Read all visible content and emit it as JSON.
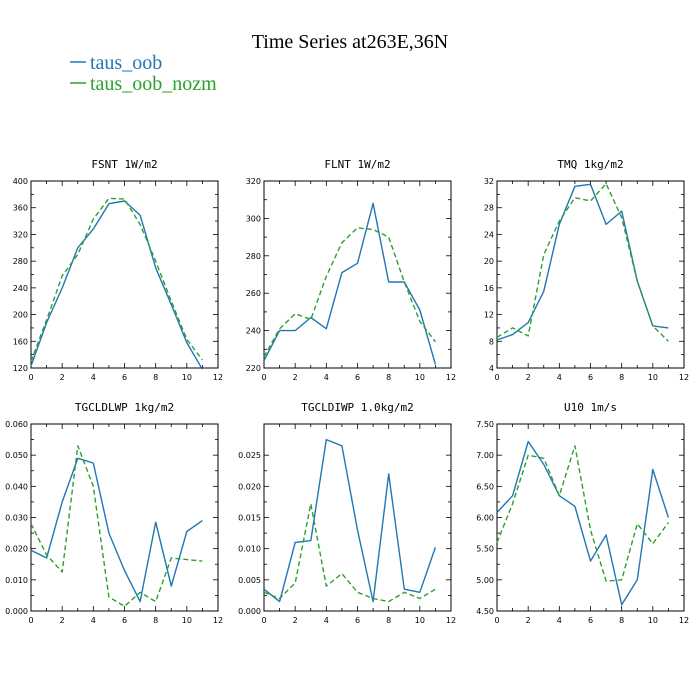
{
  "figure": {
    "title": "Time Series at263E,36N"
  },
  "legend": [
    {
      "name": "taus_oob",
      "color": "#1f77b4"
    },
    {
      "name": "taus_oob_nozm",
      "color": "#2ca02c"
    }
  ],
  "chart_data": [
    {
      "type": "line",
      "title": "FSNT   1W/m2",
      "xlim": [
        0,
        12
      ],
      "ylim": [
        120,
        400
      ],
      "xticks": [
        0,
        2,
        4,
        6,
        8,
        10,
        12
      ],
      "yticks": [
        120,
        160,
        200,
        240,
        280,
        320,
        360,
        400
      ],
      "ytick_labels": [
        "120",
        "160",
        "200",
        "240",
        "280",
        "320",
        "360",
        "400"
      ],
      "x": [
        0,
        1,
        2,
        3,
        4,
        5,
        6,
        7,
        8,
        9,
        10,
        11
      ],
      "series": [
        {
          "name": "taus_oob",
          "color": "#1f77b4",
          "dash": "",
          "values": [
            123,
            188,
            240,
            300,
            328,
            366,
            370,
            349,
            270,
            215,
            158,
            118
          ]
        },
        {
          "name": "taus_oob_nozm",
          "color": "#2ca02c",
          "dash": "5,3",
          "values": [
            130,
            192,
            258,
            290,
            343,
            374,
            373,
            335,
            280,
            220,
            163,
            132
          ]
        }
      ]
    },
    {
      "type": "line",
      "title": "FLNT   1W/m2",
      "xlim": [
        0,
        12
      ],
      "ylim": [
        220,
        320
      ],
      "xticks": [
        0,
        2,
        4,
        6,
        8,
        10,
        12
      ],
      "yticks": [
        220,
        240,
        260,
        280,
        300,
        320
      ],
      "ytick_labels": [
        "220",
        "240",
        "260",
        "280",
        "300",
        "320"
      ],
      "x": [
        0,
        1,
        2,
        3,
        4,
        5,
        6,
        7,
        8,
        9,
        10,
        11
      ],
      "series": [
        {
          "name": "taus_oob",
          "color": "#1f77b4",
          "dash": "",
          "values": [
            224,
            240,
            240,
            247,
            241,
            271,
            276,
            308,
            266,
            266,
            251,
            222
          ]
        },
        {
          "name": "taus_oob_nozm",
          "color": "#2ca02c",
          "dash": "5,3",
          "values": [
            226,
            241,
            249,
            246,
            269,
            287,
            295,
            294,
            290,
            266,
            245,
            234
          ]
        }
      ]
    },
    {
      "type": "line",
      "title": "TMQ   1kg/m2",
      "xlim": [
        0,
        12
      ],
      "ylim": [
        4,
        32
      ],
      "xticks": [
        0,
        2,
        4,
        6,
        8,
        10,
        12
      ],
      "yticks": [
        4,
        8,
        12,
        16,
        20,
        24,
        28,
        32
      ],
      "ytick_labels": [
        "4",
        "8",
        "12",
        "16",
        "20",
        "24",
        "28",
        "32"
      ],
      "x": [
        0,
        1,
        2,
        3,
        4,
        5,
        6,
        7,
        8,
        9,
        10,
        11
      ],
      "series": [
        {
          "name": "taus_oob",
          "color": "#1f77b4",
          "dash": "",
          "values": [
            8.2,
            9.0,
            10.8,
            15.5,
            25.5,
            31.2,
            31.5,
            25.5,
            27.5,
            17.0,
            10.3,
            10.0
          ]
        },
        {
          "name": "taus_oob_nozm",
          "color": "#2ca02c",
          "dash": "5,3",
          "values": [
            8.6,
            10.0,
            8.8,
            21.0,
            26.0,
            29.5,
            29.0,
            31.6,
            26.5,
            17.0,
            10.3,
            8.0
          ]
        }
      ]
    },
    {
      "type": "line",
      "title": "TGCLDLWP   1kg/m2",
      "xlim": [
        0,
        12
      ],
      "ylim": [
        0,
        0.06
      ],
      "xticks": [
        0,
        2,
        4,
        6,
        8,
        10,
        12
      ],
      "yticks": [
        0,
        0.01,
        0.02,
        0.03,
        0.04,
        0.05,
        0.06
      ],
      "ytick_labels": [
        "0.000",
        "0.010",
        "0.020",
        "0.030",
        "0.040",
        "0.050",
        "0.060"
      ],
      "x": [
        0,
        1,
        2,
        3,
        4,
        5,
        6,
        7,
        8,
        9,
        10,
        11
      ],
      "series": [
        {
          "name": "taus_oob",
          "color": "#1f77b4",
          "dash": "",
          "values": [
            0.0195,
            0.017,
            0.035,
            0.049,
            0.0475,
            0.025,
            0.013,
            0.003,
            0.0285,
            0.008,
            0.0255,
            0.029
          ]
        },
        {
          "name": "taus_oob_nozm",
          "color": "#2ca02c",
          "dash": "5,3",
          "values": [
            0.028,
            0.018,
            0.0125,
            0.053,
            0.04,
            0.0045,
            0.0015,
            0.006,
            0.003,
            0.017,
            0.0165,
            0.016
          ]
        }
      ]
    },
    {
      "type": "line",
      "title": "TGCLDIWP   1.0kg/m2",
      "xlim": [
        0,
        12
      ],
      "ylim": [
        0,
        0.03
      ],
      "xticks": [
        0,
        2,
        4,
        6,
        8,
        10,
        12
      ],
      "yticks": [
        0,
        0.005,
        0.01,
        0.015,
        0.02,
        0.025
      ],
      "ytick_labels": [
        "0.000",
        "0.005",
        "0.010",
        "0.015",
        "0.020",
        "0.025"
      ],
      "x": [
        0,
        1,
        2,
        3,
        4,
        5,
        6,
        7,
        8,
        9,
        10,
        11
      ],
      "series": [
        {
          "name": "taus_oob",
          "color": "#1f77b4",
          "dash": "",
          "values": [
            0.0035,
            0.0015,
            0.011,
            0.0113,
            0.0275,
            0.0265,
            0.013,
            0.0015,
            0.022,
            0.0035,
            0.003,
            0.0102
          ]
        },
        {
          "name": "taus_oob_nozm",
          "color": "#2ca02c",
          "dash": "5,3",
          "values": [
            0.003,
            0.002,
            0.0045,
            0.0172,
            0.004,
            0.006,
            0.003,
            0.002,
            0.0015,
            0.003,
            0.002,
            0.0035
          ]
        }
      ]
    },
    {
      "type": "line",
      "title": "U10   1m/s",
      "xlim": [
        0,
        12
      ],
      "ylim": [
        4.5,
        7.5
      ],
      "xticks": [
        0,
        2,
        4,
        6,
        8,
        10,
        12
      ],
      "yticks": [
        4.5,
        5.0,
        5.5,
        6.0,
        6.5,
        7.0,
        7.5
      ],
      "ytick_labels": [
        "4.50",
        "5.00",
        "5.50",
        "6.00",
        "6.50",
        "7.00",
        "7.50"
      ],
      "x": [
        0,
        1,
        2,
        3,
        4,
        5,
        6,
        7,
        8,
        9,
        10,
        11
      ],
      "series": [
        {
          "name": "taus_oob",
          "color": "#1f77b4",
          "dash": "",
          "values": [
            6.08,
            6.35,
            7.22,
            6.85,
            6.35,
            6.18,
            5.3,
            5.72,
            4.6,
            5.0,
            6.77,
            6.0
          ]
        },
        {
          "name": "taus_oob_nozm",
          "color": "#2ca02c",
          "dash": "5,3",
          "values": [
            5.6,
            6.22,
            7.0,
            6.95,
            6.35,
            7.15,
            5.8,
            4.98,
            5.0,
            5.9,
            5.58,
            5.92
          ]
        }
      ]
    }
  ]
}
